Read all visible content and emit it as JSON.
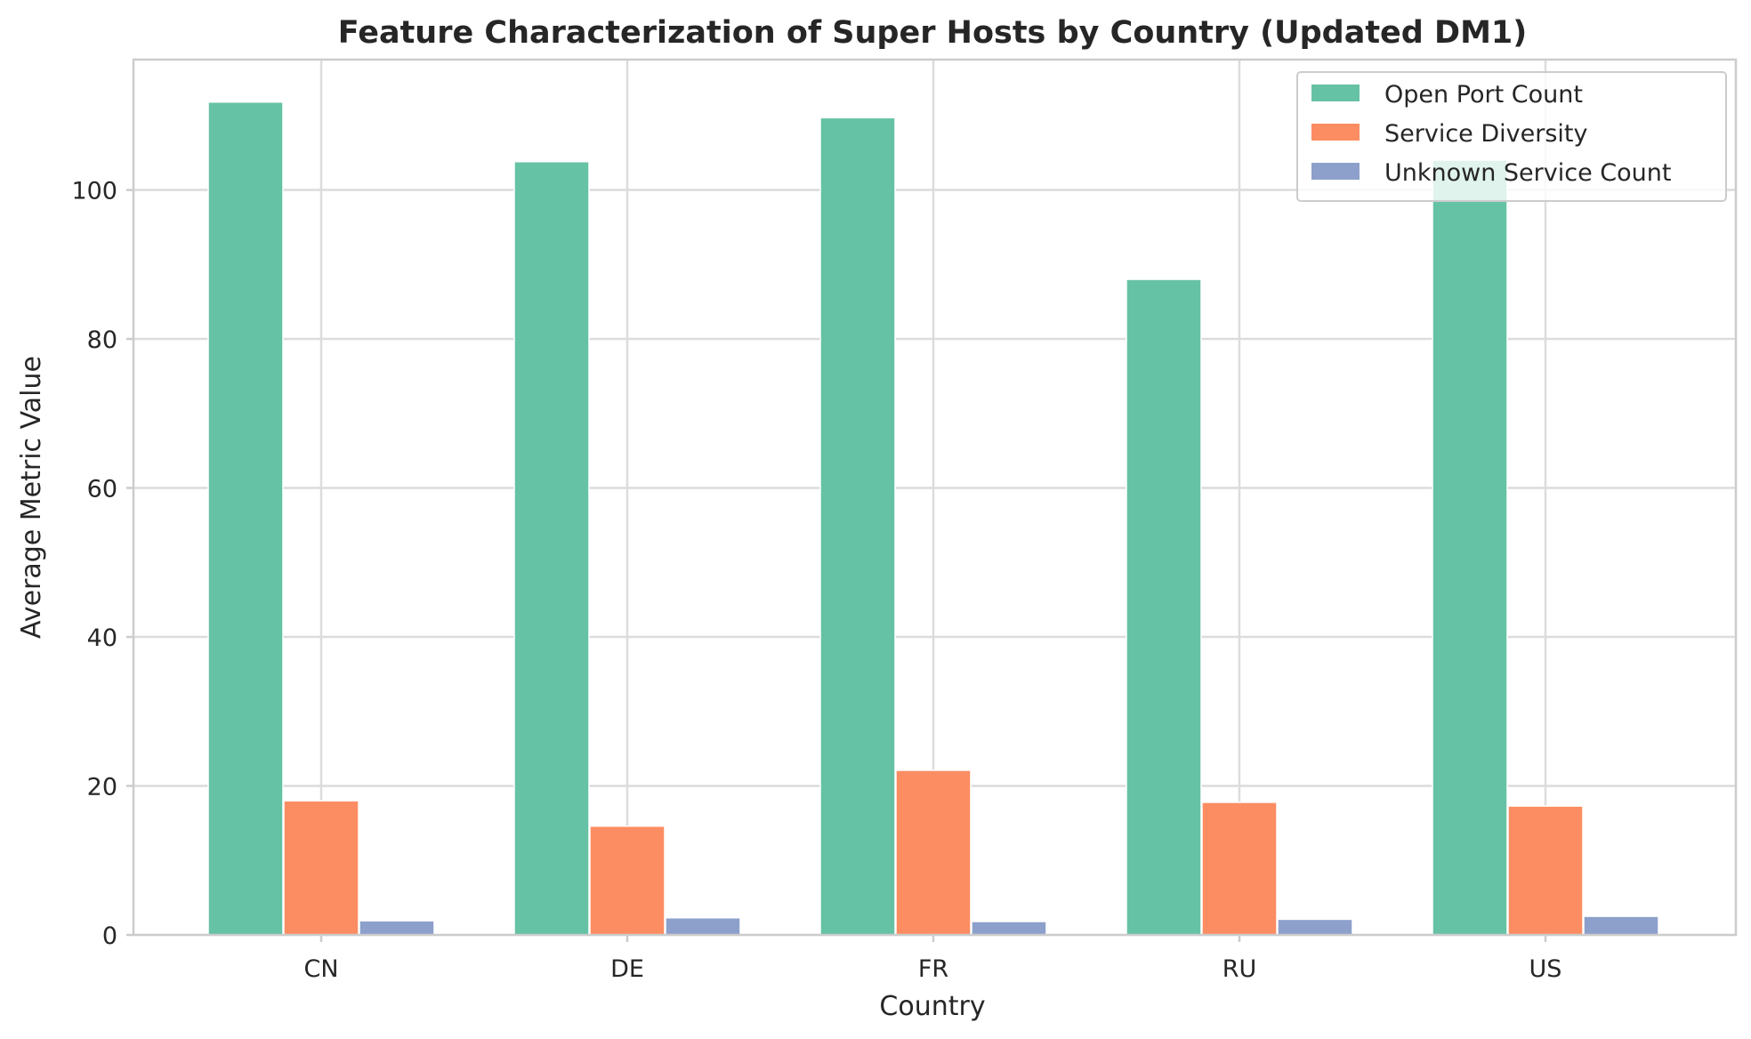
{
  "chart_data": {
    "type": "bar",
    "title": "Feature Characterization of Super Hosts by Country (Updated DM1)",
    "xlabel": "Country",
    "ylabel": "Average Metric Value",
    "categories": [
      "CN",
      "DE",
      "FR",
      "RU",
      "US"
    ],
    "series": [
      {
        "name": "Open Port Count",
        "color": "#66c2a5",
        "values": [
          111.8,
          103.8,
          109.7,
          88.0,
          104.0
        ]
      },
      {
        "name": "Service Diversity",
        "color": "#fc8d62",
        "values": [
          18.0,
          14.6,
          22.1,
          17.8,
          17.3
        ]
      },
      {
        "name": "Unknown Service Count",
        "color": "#8da0cb",
        "values": [
          1.9,
          2.3,
          1.8,
          2.1,
          2.5
        ]
      }
    ],
    "ylim": [
      0,
      117.5
    ],
    "yticks": [
      0,
      20,
      40,
      60,
      80,
      100
    ],
    "grid": true,
    "legend_position": "top-right"
  }
}
